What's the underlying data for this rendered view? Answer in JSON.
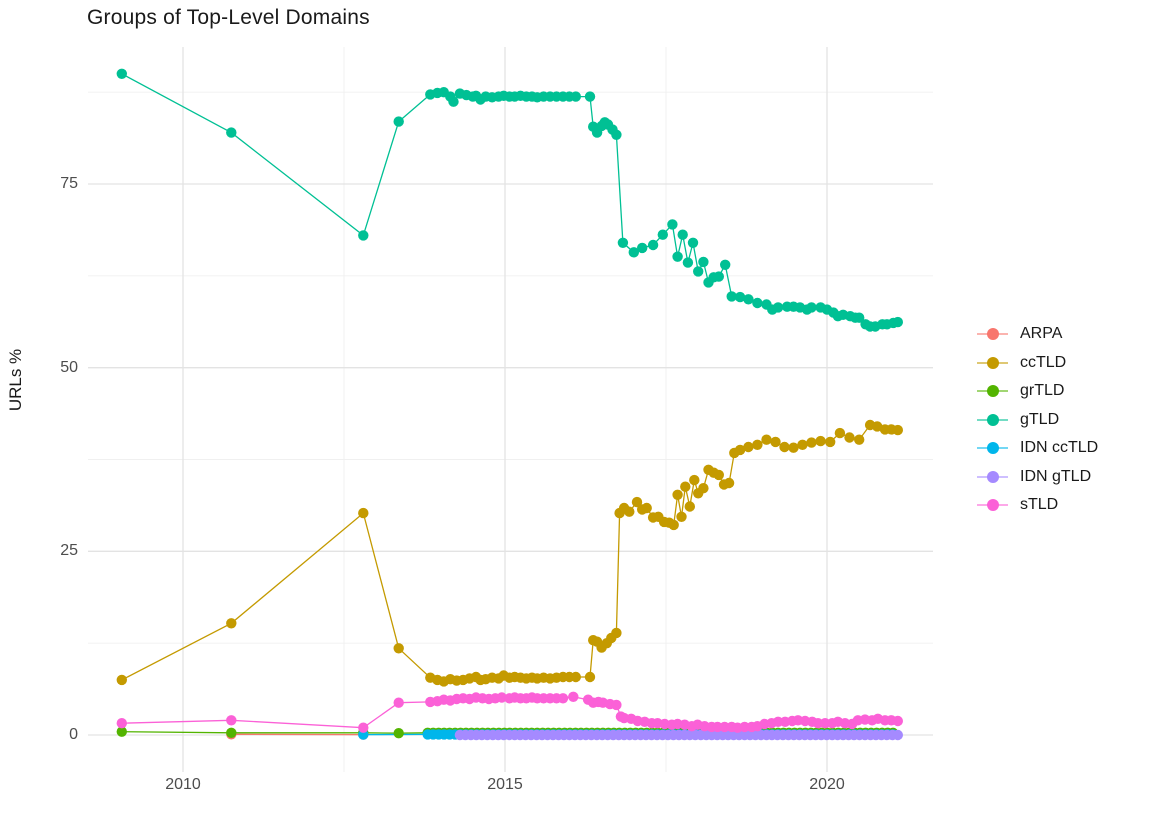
{
  "chart_data": {
    "type": "line",
    "title": "Groups of Top-Level Domains",
    "xlabel": "",
    "ylabel": "URLs %",
    "x_ticks": [
      2010,
      2015,
      2020
    ],
    "x_minor": [
      2012.5,
      2017.5
    ],
    "y_ticks": [
      0,
      25,
      50,
      75
    ],
    "y_minor": [
      12.5,
      37.5,
      62.5,
      87.5
    ],
    "xlim": [
      2008.5,
      2021.65
    ],
    "ylim": [
      -5,
      93.6
    ],
    "grid": true,
    "legend_position": "right",
    "marker": "circle",
    "series": [
      {
        "name": "ARPA",
        "color": "#F8766D",
        "points": [
          [
            2010.75,
            0.1
          ],
          [
            2012.8,
            0.05
          ]
        ]
      },
      {
        "name": "ccTLD",
        "color": "#C49A00",
        "points": [
          [
            2009.05,
            7.5
          ],
          [
            2010.75,
            15.2
          ],
          [
            2012.8,
            30.2
          ],
          [
            2013.35,
            11.8
          ],
          [
            2013.84,
            7.8
          ],
          [
            2013.95,
            7.5
          ],
          [
            2014.05,
            7.3
          ],
          [
            2014.15,
            7.6
          ],
          [
            2014.25,
            7.4
          ],
          [
            2014.35,
            7.5
          ],
          [
            2014.45,
            7.7
          ],
          [
            2014.55,
            7.9
          ],
          [
            2014.62,
            7.5
          ],
          [
            2014.7,
            7.6
          ],
          [
            2014.8,
            7.8
          ],
          [
            2014.9,
            7.7
          ],
          [
            2014.98,
            8.1
          ],
          [
            2015.07,
            7.8
          ],
          [
            2015.15,
            7.9
          ],
          [
            2015.24,
            7.8
          ],
          [
            2015.33,
            7.7
          ],
          [
            2015.42,
            7.8
          ],
          [
            2015.5,
            7.7
          ],
          [
            2015.6,
            7.8
          ],
          [
            2015.7,
            7.7
          ],
          [
            2015.8,
            7.8
          ],
          [
            2015.9,
            7.9
          ],
          [
            2016.0,
            7.9
          ],
          [
            2016.1,
            7.9
          ],
          [
            2016.32,
            7.9
          ],
          [
            2016.37,
            12.9
          ],
          [
            2016.43,
            12.7
          ],
          [
            2016.5,
            11.9
          ],
          [
            2016.58,
            12.5
          ],
          [
            2016.65,
            13.2
          ],
          [
            2016.73,
            13.9
          ],
          [
            2016.78,
            30.2
          ],
          [
            2016.85,
            30.9
          ],
          [
            2016.93,
            30.4
          ],
          [
            2017.05,
            31.7
          ],
          [
            2017.13,
            30.7
          ],
          [
            2017.2,
            30.9
          ],
          [
            2017.3,
            29.6
          ],
          [
            2017.38,
            29.7
          ],
          [
            2017.47,
            29.0
          ],
          [
            2017.55,
            28.9
          ],
          [
            2017.62,
            28.6
          ],
          [
            2017.68,
            32.7
          ],
          [
            2017.74,
            29.7
          ],
          [
            2017.8,
            33.8
          ],
          [
            2017.87,
            31.1
          ],
          [
            2017.94,
            34.7
          ],
          [
            2018.0,
            32.9
          ],
          [
            2018.08,
            33.6
          ],
          [
            2018.16,
            36.1
          ],
          [
            2018.24,
            35.7
          ],
          [
            2018.32,
            35.4
          ],
          [
            2018.4,
            34.1
          ],
          [
            2018.48,
            34.3
          ],
          [
            2018.56,
            38.4
          ],
          [
            2018.65,
            38.8
          ],
          [
            2018.78,
            39.2
          ],
          [
            2018.92,
            39.5
          ],
          [
            2019.06,
            40.2
          ],
          [
            2019.2,
            39.9
          ],
          [
            2019.34,
            39.2
          ],
          [
            2019.48,
            39.1
          ],
          [
            2019.62,
            39.5
          ],
          [
            2019.76,
            39.8
          ],
          [
            2019.9,
            40.0
          ],
          [
            2020.05,
            39.9
          ],
          [
            2020.2,
            41.1
          ],
          [
            2020.35,
            40.5
          ],
          [
            2020.5,
            40.2
          ],
          [
            2020.67,
            42.2
          ],
          [
            2020.78,
            42.0
          ],
          [
            2020.9,
            41.6
          ],
          [
            2021.0,
            41.6
          ],
          [
            2021.1,
            41.5
          ]
        ]
      },
      {
        "name": "grTLD",
        "color": "#53B400",
        "points": [
          [
            2009.05,
            0.45
          ],
          [
            2010.75,
            0.3
          ],
          [
            2012.8,
            0.3
          ],
          [
            2013.35,
            0.25
          ]
        ],
        "dense": {
          "start": 2013.8,
          "end": 2021.1,
          "step": 0.085,
          "value": 0.3
        }
      },
      {
        "name": "gTLD",
        "color": "#00C094",
        "points": [
          [
            2009.05,
            90.0
          ],
          [
            2010.75,
            82.0
          ],
          [
            2012.8,
            68.0
          ],
          [
            2013.35,
            83.5
          ],
          [
            2013.84,
            87.2
          ],
          [
            2013.95,
            87.4
          ],
          [
            2014.05,
            87.5
          ],
          [
            2014.15,
            86.9
          ],
          [
            2014.2,
            86.2
          ],
          [
            2014.3,
            87.3
          ],
          [
            2014.4,
            87.1
          ],
          [
            2014.5,
            86.9
          ],
          [
            2014.55,
            87.0
          ],
          [
            2014.62,
            86.5
          ],
          [
            2014.7,
            86.9
          ],
          [
            2014.8,
            86.8
          ],
          [
            2014.9,
            86.9
          ],
          [
            2014.98,
            87.0
          ],
          [
            2015.07,
            86.9
          ],
          [
            2015.15,
            86.9
          ],
          [
            2015.24,
            87.0
          ],
          [
            2015.33,
            86.9
          ],
          [
            2015.42,
            86.9
          ],
          [
            2015.5,
            86.8
          ],
          [
            2015.6,
            86.9
          ],
          [
            2015.7,
            86.9
          ],
          [
            2015.8,
            86.9
          ],
          [
            2015.9,
            86.9
          ],
          [
            2016.0,
            86.9
          ],
          [
            2016.1,
            86.9
          ],
          [
            2016.32,
            86.9
          ],
          [
            2016.37,
            82.8
          ],
          [
            2016.43,
            82.0
          ],
          [
            2016.5,
            82.9
          ],
          [
            2016.55,
            83.4
          ],
          [
            2016.6,
            83.1
          ],
          [
            2016.67,
            82.4
          ],
          [
            2016.73,
            81.7
          ],
          [
            2016.83,
            67.0
          ],
          [
            2017.0,
            65.7
          ],
          [
            2017.13,
            66.3
          ],
          [
            2017.3,
            66.7
          ],
          [
            2017.45,
            68.1
          ],
          [
            2017.6,
            69.5
          ],
          [
            2017.68,
            65.1
          ],
          [
            2017.76,
            68.1
          ],
          [
            2017.84,
            64.3
          ],
          [
            2017.92,
            67.0
          ],
          [
            2018.0,
            63.1
          ],
          [
            2018.08,
            64.4
          ],
          [
            2018.16,
            61.6
          ],
          [
            2018.24,
            62.3
          ],
          [
            2018.32,
            62.4
          ],
          [
            2018.42,
            64.0
          ],
          [
            2018.52,
            59.7
          ],
          [
            2018.65,
            59.6
          ],
          [
            2018.78,
            59.3
          ],
          [
            2018.92,
            58.8
          ],
          [
            2019.06,
            58.6
          ],
          [
            2019.15,
            57.9
          ],
          [
            2019.24,
            58.2
          ],
          [
            2019.38,
            58.3
          ],
          [
            2019.48,
            58.3
          ],
          [
            2019.58,
            58.2
          ],
          [
            2019.69,
            57.9
          ],
          [
            2019.76,
            58.2
          ],
          [
            2019.9,
            58.2
          ],
          [
            2020.0,
            57.9
          ],
          [
            2020.1,
            57.5
          ],
          [
            2020.17,
            57.0
          ],
          [
            2020.25,
            57.2
          ],
          [
            2020.36,
            57.0
          ],
          [
            2020.44,
            56.8
          ],
          [
            2020.5,
            56.8
          ],
          [
            2020.6,
            55.9
          ],
          [
            2020.67,
            55.6
          ],
          [
            2020.75,
            55.6
          ],
          [
            2020.86,
            55.9
          ],
          [
            2020.93,
            55.9
          ],
          [
            2021.03,
            56.1
          ],
          [
            2021.1,
            56.2
          ]
        ]
      },
      {
        "name": "IDN ccTLD",
        "color": "#00B6EB",
        "points": [
          [
            2012.8,
            0.05
          ]
        ],
        "dense": {
          "start": 2013.8,
          "end": 2021.1,
          "step": 0.085,
          "value": 0.08
        }
      },
      {
        "name": "IDN gTLD",
        "color": "#A58AFF",
        "points": [],
        "dense": {
          "start": 2014.3,
          "end": 2021.1,
          "step": 0.085,
          "value": 0.0
        }
      },
      {
        "name": "sTLD",
        "color": "#FB61D7",
        "points": [
          [
            2009.05,
            1.6
          ],
          [
            2010.75,
            2.0
          ],
          [
            2012.8,
            1.0
          ],
          [
            2013.35,
            4.4
          ],
          [
            2013.84,
            4.5
          ],
          [
            2013.95,
            4.6
          ],
          [
            2014.05,
            4.8
          ],
          [
            2014.15,
            4.7
          ],
          [
            2014.25,
            4.9
          ],
          [
            2014.35,
            5.0
          ],
          [
            2014.45,
            4.9
          ],
          [
            2014.55,
            5.1
          ],
          [
            2014.65,
            5.0
          ],
          [
            2014.75,
            4.9
          ],
          [
            2014.85,
            5.0
          ],
          [
            2014.95,
            5.1
          ],
          [
            2015.07,
            5.0
          ],
          [
            2015.15,
            5.1
          ],
          [
            2015.24,
            5.0
          ],
          [
            2015.33,
            5.0
          ],
          [
            2015.42,
            5.1
          ],
          [
            2015.5,
            5.0
          ],
          [
            2015.6,
            5.0
          ],
          [
            2015.7,
            5.0
          ],
          [
            2015.8,
            5.0
          ],
          [
            2015.9,
            5.0
          ],
          [
            2016.06,
            5.2
          ],
          [
            2016.29,
            4.8
          ],
          [
            2016.37,
            4.4
          ],
          [
            2016.45,
            4.5
          ],
          [
            2016.52,
            4.4
          ],
          [
            2016.63,
            4.2
          ],
          [
            2016.73,
            4.1
          ],
          [
            2016.8,
            2.5
          ],
          [
            2016.85,
            2.3
          ],
          [
            2016.96,
            2.2
          ],
          [
            2017.06,
            1.9
          ],
          [
            2017.17,
            1.8
          ],
          [
            2017.28,
            1.6
          ],
          [
            2017.37,
            1.6
          ],
          [
            2017.48,
            1.5
          ],
          [
            2017.59,
            1.4
          ],
          [
            2017.68,
            1.5
          ],
          [
            2017.79,
            1.4
          ],
          [
            2017.9,
            1.2
          ],
          [
            2017.99,
            1.4
          ],
          [
            2018.1,
            1.2
          ],
          [
            2018.21,
            1.1
          ],
          [
            2018.3,
            1.1
          ],
          [
            2018.41,
            1.1
          ],
          [
            2018.52,
            1.1
          ],
          [
            2018.61,
            1.0
          ],
          [
            2018.72,
            1.1
          ],
          [
            2018.83,
            1.1
          ],
          [
            2018.92,
            1.2
          ],
          [
            2019.03,
            1.5
          ],
          [
            2019.14,
            1.6
          ],
          [
            2019.24,
            1.8
          ],
          [
            2019.35,
            1.8
          ],
          [
            2019.46,
            1.9
          ],
          [
            2019.55,
            2.0
          ],
          [
            2019.66,
            1.9
          ],
          [
            2019.77,
            1.8
          ],
          [
            2019.86,
            1.6
          ],
          [
            2019.97,
            1.6
          ],
          [
            2020.08,
            1.6
          ],
          [
            2020.17,
            1.8
          ],
          [
            2020.28,
            1.6
          ],
          [
            2020.39,
            1.5
          ],
          [
            2020.48,
            2.0
          ],
          [
            2020.59,
            2.1
          ],
          [
            2020.7,
            2.0
          ],
          [
            2020.79,
            2.2
          ],
          [
            2020.9,
            2.0
          ],
          [
            2021.0,
            2.0
          ],
          [
            2021.1,
            1.9
          ]
        ]
      }
    ]
  },
  "colors": {
    "grid_major": "#e3e3e3",
    "grid_minor": "#f0f0f0",
    "tick_text": "#4d4d4d",
    "title_text": "#1a1a1a"
  }
}
